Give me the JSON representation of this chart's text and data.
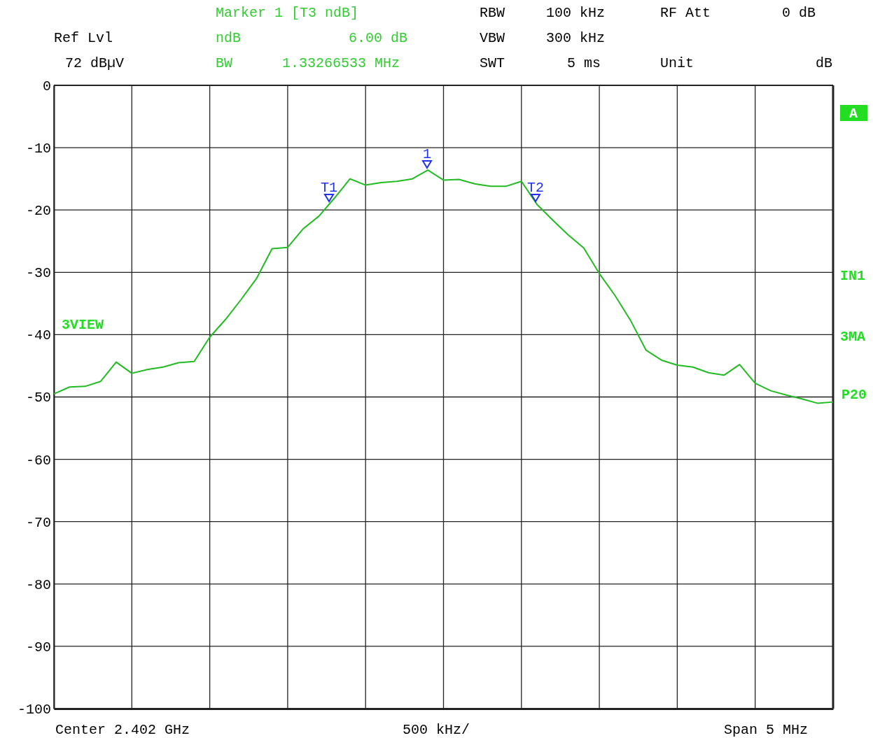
{
  "chart_data": {
    "type": "line",
    "categories": [
      null,
      null,
      null,
      null,
      null,
      null,
      null,
      null,
      null,
      null,
      null,
      null,
      null,
      null,
      null,
      null,
      null,
      null,
      null,
      null,
      null,
      null,
      null,
      null,
      null,
      null,
      null,
      null,
      null,
      null,
      null,
      null,
      null,
      null,
      null,
      null,
      null,
      null,
      null,
      null,
      null,
      null,
      null,
      null,
      null,
      null,
      null,
      null,
      null,
      null,
      null
    ],
    "series": [
      {
        "color": "#22bb22",
        "values": [
          -49.5,
          -48.4,
          -48.3,
          -47.5,
          -44.4,
          -46.2,
          -45.6,
          -45.2,
          -44.5,
          -44.3,
          -40.4,
          -37.6,
          -34.4,
          -31.0,
          -26.2,
          -26.0,
          -23.0,
          -21.0,
          -18.1,
          -15.0,
          -16.0,
          -15.6,
          -15.4,
          -15.0,
          -13.6,
          -15.2,
          -15.1,
          -15.8,
          -16.2,
          -16.2,
          -15.4,
          -19.1,
          -21.6,
          -24.0,
          -26.1,
          -30.2,
          -33.7,
          -37.7,
          -42.5,
          -44.1,
          -44.9,
          -45.2,
          -46.1,
          -46.5,
          -44.8,
          -47.8,
          -49.0,
          -49.7,
          -50.3,
          -51.0,
          -50.8
        ]
      }
    ],
    "ylim": [
      -100,
      0
    ],
    "yticks": [
      0,
      -10,
      -20,
      -30,
      -40,
      -50,
      -60,
      -70,
      -80,
      -90,
      -100
    ],
    "grid": true,
    "annotations": [
      "Ref Lvl",
      "72 dBµV",
      "Marker 1 [T3 ndB]",
      "ndB",
      "6.00 dB",
      "BW",
      "1.33266533 MHz",
      "RBW",
      "100 kHz",
      "VBW",
      "300 kHz",
      "SWT",
      "5 ms",
      "RF Att",
      "0 dB",
      "Unit",
      "dB",
      "Center 2.402 GHz",
      "500 kHz/",
      "Span 5 MHz",
      "A",
      "IN1",
      "3MA",
      "P20",
      "3VIEW",
      "T1",
      "1",
      "T2"
    ]
  }
}
